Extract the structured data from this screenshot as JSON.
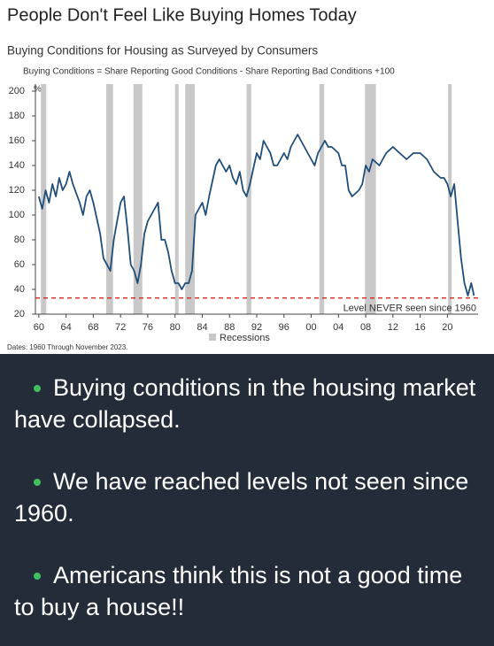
{
  "chart_data": {
    "type": "line",
    "title": "People Don't Feel Like Buying Homes Today",
    "subtitle": "Buying Conditions for Housing as Surveyed by Consumers",
    "note": "Buying Conditions = Share Reporting Good Conditions - Share Reporting Bad Conditions +100",
    "y_unit": "%",
    "source": "Dates: 1960 Through November 2023.",
    "annotation": "Level NEVER seen since 1960",
    "threshold": 33,
    "threshold_color": "#d9342b",
    "recession_label": "Recessions",
    "recession_color": "#c8c8c8",
    "recessions": [
      [
        1960.3,
        1961.1
      ],
      [
        1969.9,
        1970.9
      ],
      [
        1973.9,
        1975.2
      ],
      [
        1980.0,
        1980.5
      ],
      [
        1981.5,
        1982.9
      ],
      [
        1990.5,
        1991.2
      ],
      [
        2001.2,
        2001.9
      ],
      [
        2007.9,
        2009.5
      ],
      [
        2020.1,
        2020.4
      ]
    ],
    "color": "#1f4e79",
    "x": [
      1960,
      1960.5,
      1961,
      1961.5,
      1962,
      1962.5,
      1963,
      1963.5,
      1964,
      1964.5,
      1965,
      1966,
      1966.5,
      1967,
      1967.5,
      1968,
      1969,
      1969.5,
      1970,
      1970.5,
      1971,
      1971.5,
      1972,
      1972.5,
      1973,
      1973.5,
      1974,
      1974.5,
      1975,
      1975.5,
      1976,
      1977,
      1977.5,
      1978,
      1978.5,
      1979,
      1979.5,
      1980,
      1980.5,
      1981,
      1981.5,
      1982,
      1982.5,
      1983,
      1983.5,
      1984,
      1984.5,
      1985,
      1986,
      1986.5,
      1987,
      1987.5,
      1988,
      1988.5,
      1989,
      1989.5,
      1990,
      1990.5,
      1991,
      1992,
      1992.5,
      1993,
      1993.5,
      1994,
      1994.5,
      1995,
      1996,
      1996.5,
      1997,
      1998,
      1998.5,
      1999,
      2000,
      2000.5,
      2001,
      2002,
      2002.5,
      2003,
      2004,
      2004.5,
      2005,
      2005.5,
      2006,
      2007,
      2007.5,
      2008,
      2008.5,
      2009,
      2010,
      2011,
      2012,
      2013,
      2014,
      2015,
      2016,
      2017,
      2018,
      2019,
      2019.5,
      2020,
      2020.5,
      2021,
      2021.5,
      2022,
      2022.5,
      2023,
      2023.5,
      2023.9
    ],
    "values": [
      115,
      105,
      120,
      110,
      125,
      115,
      130,
      120,
      125,
      135,
      125,
      110,
      100,
      115,
      120,
      110,
      85,
      65,
      60,
      55,
      80,
      95,
      110,
      115,
      90,
      60,
      55,
      45,
      60,
      85,
      95,
      105,
      110,
      80,
      80,
      70,
      55,
      45,
      45,
      40,
      45,
      45,
      55,
      100,
      105,
      110,
      100,
      115,
      140,
      145,
      140,
      135,
      140,
      130,
      125,
      135,
      120,
      115,
      125,
      150,
      145,
      160,
      155,
      150,
      140,
      140,
      150,
      145,
      155,
      165,
      160,
      155,
      145,
      140,
      150,
      160,
      155,
      155,
      150,
      140,
      140,
      120,
      115,
      120,
      125,
      140,
      135,
      145,
      140,
      150,
      155,
      150,
      145,
      150,
      150,
      145,
      135,
      130,
      130,
      125,
      115,
      125,
      95,
      65,
      45,
      35,
      45,
      35
    ],
    "xlim": [
      1959.5,
      2024.5
    ],
    "xticks": [
      {
        "value": 1960,
        "label": "60"
      },
      {
        "value": 1964,
        "label": "64"
      },
      {
        "value": 1968,
        "label": "68"
      },
      {
        "value": 1972,
        "label": "72"
      },
      {
        "value": 1976,
        "label": "76"
      },
      {
        "value": 1980,
        "label": "80"
      },
      {
        "value": 1984,
        "label": "84"
      },
      {
        "value": 1988,
        "label": "88"
      },
      {
        "value": 1992,
        "label": "92"
      },
      {
        "value": 1996,
        "label": "96"
      },
      {
        "value": 2000,
        "label": "00"
      },
      {
        "value": 2004,
        "label": "04"
      },
      {
        "value": 2008,
        "label": "08"
      },
      {
        "value": 2012,
        "label": "12"
      },
      {
        "value": 2016,
        "label": "16"
      },
      {
        "value": 2020,
        "label": "20"
      }
    ],
    "ylim": [
      20,
      200
    ],
    "yticks": [
      20,
      40,
      60,
      80,
      100,
      120,
      140,
      160,
      180,
      200
    ]
  },
  "bullets": [
    "Buying conditions in the housing market have collapsed.",
    "We have reached levels not seen since 1960.",
    "Americans think this is not a good time to buy a house!!"
  ]
}
